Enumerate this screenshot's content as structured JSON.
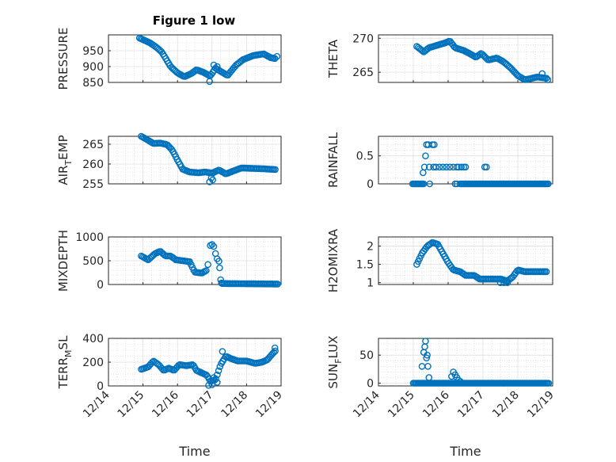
{
  "figure": {
    "title": "Figure 1 low",
    "xlabel": "Time",
    "marker_color": "#0072bd",
    "xticks": [
      "12/14",
      "12/15",
      "12/16",
      "12/17",
      "12/18",
      "12/19"
    ]
  },
  "chart_data": [
    {
      "id": "pressure",
      "type": "scatter",
      "panel": "top-left",
      "title": "Figure 1 low",
      "xlabel": "",
      "ylabel": "PRESSURE",
      "xlim": [
        14,
        19
      ],
      "ylim": [
        850,
        1000
      ],
      "yticks": [
        850,
        900,
        950
      ],
      "yticklabels": [
        "850",
        "900",
        "950"
      ],
      "minor_y": [
        875,
        925,
        975
      ],
      "knots": [
        [
          14.9,
          990
        ],
        [
          15.2,
          975
        ],
        [
          15.4,
          960
        ],
        [
          15.55,
          945
        ],
        [
          15.8,
          900
        ],
        [
          16.0,
          880
        ],
        [
          16.2,
          868
        ],
        [
          16.4,
          878
        ],
        [
          16.55,
          890
        ],
        [
          16.75,
          882
        ],
        [
          16.95,
          870
        ],
        [
          17.1,
          895
        ],
        [
          17.25,
          885
        ],
        [
          17.45,
          872
        ],
        [
          17.7,
          905
        ],
        [
          17.9,
          922
        ],
        [
          18.2,
          935
        ],
        [
          18.5,
          940
        ],
        [
          18.7,
          928
        ],
        [
          18.85,
          925
        ]
      ],
      "step": 0.04,
      "extras": [
        [
          16.93,
          853
        ],
        [
          17.05,
          905
        ],
        [
          17.15,
          900
        ],
        [
          18.88,
          932
        ]
      ]
    },
    {
      "id": "theta",
      "type": "scatter",
      "panel": "top-right",
      "xlabel": "",
      "ylabel": "THETA",
      "xlim": [
        14,
        19
      ],
      "ylim": [
        263.5,
        270.5
      ],
      "yticks": [
        265,
        270
      ],
      "yticklabels": [
        "265",
        "270"
      ],
      "minor_y": [
        266,
        267,
        268,
        269
      ],
      "knots": [
        [
          15.1,
          268.8
        ],
        [
          15.3,
          268.0
        ],
        [
          15.45,
          268.6
        ],
        [
          15.7,
          269.0
        ],
        [
          15.9,
          269.3
        ],
        [
          16.05,
          269.6
        ],
        [
          16.2,
          268.6
        ],
        [
          16.45,
          268.2
        ],
        [
          16.6,
          267.8
        ],
        [
          16.8,
          267.2
        ],
        [
          16.95,
          267.8
        ],
        [
          17.15,
          266.8
        ],
        [
          17.4,
          267.1
        ],
        [
          17.6,
          266.5
        ],
        [
          17.8,
          265.6
        ],
        [
          18.0,
          264.5
        ],
        [
          18.2,
          263.9
        ],
        [
          18.4,
          264.1
        ],
        [
          18.55,
          264.3
        ],
        [
          18.85,
          264.1
        ]
      ],
      "step": 0.04,
      "extras": [
        [
          18.7,
          264.8
        ],
        [
          18.86,
          263.9
        ]
      ]
    },
    {
      "id": "airtemp",
      "type": "scatter",
      "panel": "mid1-left",
      "xlabel": "",
      "ylabel_main": "AIR",
      "ylabel_sub": "T",
      "ylabel_rest": "EMP",
      "xlim": [
        14,
        19
      ],
      "ylim": [
        255,
        267
      ],
      "yticks": [
        255,
        260,
        265
      ],
      "yticklabels": [
        "255",
        "260",
        "265"
      ],
      "minor_y": [
        256,
        257,
        258,
        259,
        261,
        262,
        263,
        264,
        266
      ],
      "knots": [
        [
          14.95,
          267.0
        ],
        [
          15.15,
          266.0
        ],
        [
          15.3,
          265.2
        ],
        [
          15.5,
          265.3
        ],
        [
          15.7,
          264.9
        ],
        [
          15.85,
          263.5
        ],
        [
          16.0,
          261.0
        ],
        [
          16.15,
          258.7
        ],
        [
          16.35,
          258.0
        ],
        [
          16.6,
          257.8
        ],
        [
          16.8,
          258.0
        ],
        [
          17.0,
          257.7
        ],
        [
          17.2,
          258.5
        ],
        [
          17.4,
          257.5
        ],
        [
          17.6,
          258.2
        ],
        [
          17.85,
          259.0
        ],
        [
          18.2,
          258.9
        ],
        [
          18.5,
          258.8
        ],
        [
          18.85,
          258.6
        ]
      ],
      "step": 0.04,
      "extras": [
        [
          16.93,
          255.5
        ],
        [
          16.98,
          256.5
        ],
        [
          17.02,
          256.0
        ]
      ]
    },
    {
      "id": "rainfall",
      "type": "scatter",
      "panel": "mid1-right",
      "xlabel": "",
      "ylabel": "RAINFALL",
      "xlim": [
        14,
        19
      ],
      "ylim": [
        0,
        0.85
      ],
      "yticks": [
        0,
        0.5
      ],
      "yticklabels": [
        "0",
        "0.5"
      ],
      "minor_y": [
        0.1,
        0.2,
        0.3,
        0.4,
        0.6,
        0.7,
        0.8
      ],
      "knots": [
        [
          14.98,
          0
        ],
        [
          15.3,
          0
        ]
      ],
      "step": 0.035,
      "extras": [
        [
          15.28,
          0.2
        ],
        [
          15.32,
          0.3
        ],
        [
          15.35,
          0.5
        ],
        [
          15.38,
          0.7
        ],
        [
          15.43,
          0.7
        ],
        [
          15.46,
          0.3
        ],
        [
          15.47,
          0
        ],
        [
          15.55,
          0.7
        ],
        [
          15.6,
          0.7
        ],
        [
          15.58,
          0.3
        ],
        [
          15.65,
          0.3
        ],
        [
          15.75,
          0.3
        ],
        [
          15.85,
          0.3
        ],
        [
          15.95,
          0.3
        ],
        [
          16.05,
          0.3
        ],
        [
          16.15,
          0.3
        ],
        [
          16.25,
          0.3
        ],
        [
          16.3,
          0.3
        ],
        [
          16.38,
          0.3
        ],
        [
          16.45,
          0.3
        ],
        [
          16.5,
          0.3
        ],
        [
          16.2,
          0
        ],
        [
          16.25,
          0
        ],
        [
          17.05,
          0.3
        ],
        [
          17.1,
          0.3
        ]
      ],
      "extras_line": [
        [
          16.35,
          0
        ],
        [
          18.9,
          0
        ]
      ]
    },
    {
      "id": "mixdepth",
      "type": "scatter",
      "panel": "mid2-left",
      "xlabel": "",
      "ylabel": "MIXDEPTH",
      "xlim": [
        14,
        19
      ],
      "ylim": [
        0,
        1000
      ],
      "yticks": [
        0,
        500,
        1000
      ],
      "yticklabels": [
        "0",
        "500",
        "1000"
      ],
      "minor_y": [
        100,
        200,
        300,
        400,
        600,
        700,
        800,
        900
      ],
      "knots": [
        [
          14.95,
          600
        ],
        [
          15.15,
          520
        ],
        [
          15.35,
          650
        ],
        [
          15.5,
          700
        ],
        [
          15.65,
          600
        ],
        [
          15.8,
          600
        ],
        [
          15.95,
          520
        ],
        [
          16.15,
          500
        ],
        [
          16.35,
          480
        ],
        [
          16.5,
          260
        ],
        [
          16.7,
          240
        ],
        [
          16.85,
          300
        ]
      ],
      "step": 0.04,
      "extras": [
        [
          16.88,
          420
        ],
        [
          16.95,
          820
        ],
        [
          17.0,
          840
        ],
        [
          17.05,
          800
        ],
        [
          17.1,
          650
        ],
        [
          17.15,
          540
        ],
        [
          17.2,
          490
        ],
        [
          17.22,
          350
        ],
        [
          17.25,
          100
        ],
        [
          17.27,
          30
        ]
      ],
      "extras_line": [
        [
          17.3,
          20
        ],
        [
          18.9,
          10
        ]
      ]
    },
    {
      "id": "h2omixra",
      "type": "scatter",
      "panel": "mid2-right",
      "xlabel": "",
      "ylabel": "H2OMIXRA",
      "xlim": [
        14,
        19
      ],
      "ylim": [
        0.95,
        2.25
      ],
      "yticks": [
        1,
        1.5,
        2
      ],
      "yticklabels": [
        "1",
        "1.5",
        "2"
      ],
      "minor_y": [
        1.1,
        1.2,
        1.3,
        1.4,
        1.6,
        1.7,
        1.8,
        1.9,
        2.1,
        2.2
      ],
      "knots": [
        [
          15.1,
          1.5
        ],
        [
          15.25,
          1.8
        ],
        [
          15.4,
          2.0
        ],
        [
          15.55,
          2.1
        ],
        [
          15.7,
          2.05
        ],
        [
          15.85,
          1.8
        ],
        [
          16.0,
          1.55
        ],
        [
          16.15,
          1.35
        ],
        [
          16.35,
          1.3
        ],
        [
          16.5,
          1.2
        ],
        [
          16.75,
          1.2
        ],
        [
          16.9,
          1.1
        ],
        [
          17.3,
          1.1
        ],
        [
          17.5,
          1.1
        ],
        [
          17.7,
          1.05
        ],
        [
          17.85,
          1.15
        ],
        [
          18.0,
          1.35
        ],
        [
          18.2,
          1.3
        ],
        [
          18.85,
          1.3
        ]
      ],
      "step": 0.04,
      "extras": [
        [
          17.5,
          1.0
        ],
        [
          17.6,
          1.0
        ],
        [
          17.7,
          1.0
        ]
      ]
    },
    {
      "id": "terrmsl",
      "type": "scatter",
      "panel": "bottom-left",
      "xlabel": "Time",
      "ylabel_main": "TERR",
      "ylabel_sub": "M",
      "ylabel_rest": "SL",
      "xlim": [
        14,
        19
      ],
      "ylim": [
        0,
        400
      ],
      "yticks": [
        0,
        200,
        400
      ],
      "yticklabels": [
        "0",
        "200",
        "400"
      ],
      "minor_y": [
        50,
        100,
        150,
        250,
        300,
        350
      ],
      "knots": [
        [
          14.95,
          140
        ],
        [
          15.15,
          160
        ],
        [
          15.3,
          210
        ],
        [
          15.45,
          180
        ],
        [
          15.6,
          130
        ],
        [
          15.75,
          150
        ],
        [
          15.9,
          130
        ],
        [
          16.05,
          180
        ],
        [
          16.25,
          170
        ],
        [
          16.45,
          180
        ],
        [
          16.55,
          130
        ],
        [
          16.7,
          110
        ],
        [
          16.85,
          90
        ],
        [
          16.95,
          40
        ],
        [
          17.1,
          50
        ],
        [
          17.25,
          180
        ],
        [
          17.4,
          250
        ],
        [
          17.55,
          230
        ],
        [
          17.75,
          210
        ],
        [
          18.0,
          210
        ],
        [
          18.25,
          190
        ],
        [
          18.45,
          200
        ],
        [
          18.6,
          220
        ],
        [
          18.75,
          270
        ],
        [
          18.85,
          300
        ]
      ],
      "step": 0.04,
      "extras": [
        [
          16.9,
          5
        ],
        [
          17.0,
          10
        ],
        [
          17.05,
          70
        ],
        [
          17.15,
          30
        ],
        [
          17.3,
          290
        ],
        [
          18.82,
          320
        ]
      ]
    },
    {
      "id": "sunflux",
      "type": "scatter",
      "panel": "bottom-right",
      "xlabel": "Time",
      "ylabel_main": "SUN",
      "ylabel_sub": "F",
      "ylabel_rest": "LUX",
      "xlim": [
        14,
        19
      ],
      "ylim": [
        -5,
        80
      ],
      "yticks": [
        0,
        50
      ],
      "yticklabels": [
        "0",
        "50"
      ],
      "minor_y": [
        10,
        20,
        30,
        40,
        60,
        70
      ],
      "knots": [
        [
          15.0,
          0
        ],
        [
          18.9,
          0
        ]
      ],
      "step": 0.035,
      "extras": [
        [
          15.25,
          30
        ],
        [
          15.3,
          55
        ],
        [
          15.33,
          65
        ],
        [
          15.35,
          75
        ],
        [
          15.38,
          45
        ],
        [
          15.4,
          50
        ],
        [
          15.42,
          30
        ],
        [
          15.45,
          10
        ],
        [
          16.15,
          20
        ],
        [
          16.2,
          15
        ],
        [
          16.25,
          10
        ],
        [
          16.3,
          5
        ],
        [
          16.35,
          3
        ],
        [
          16.1,
          12
        ]
      ]
    }
  ]
}
